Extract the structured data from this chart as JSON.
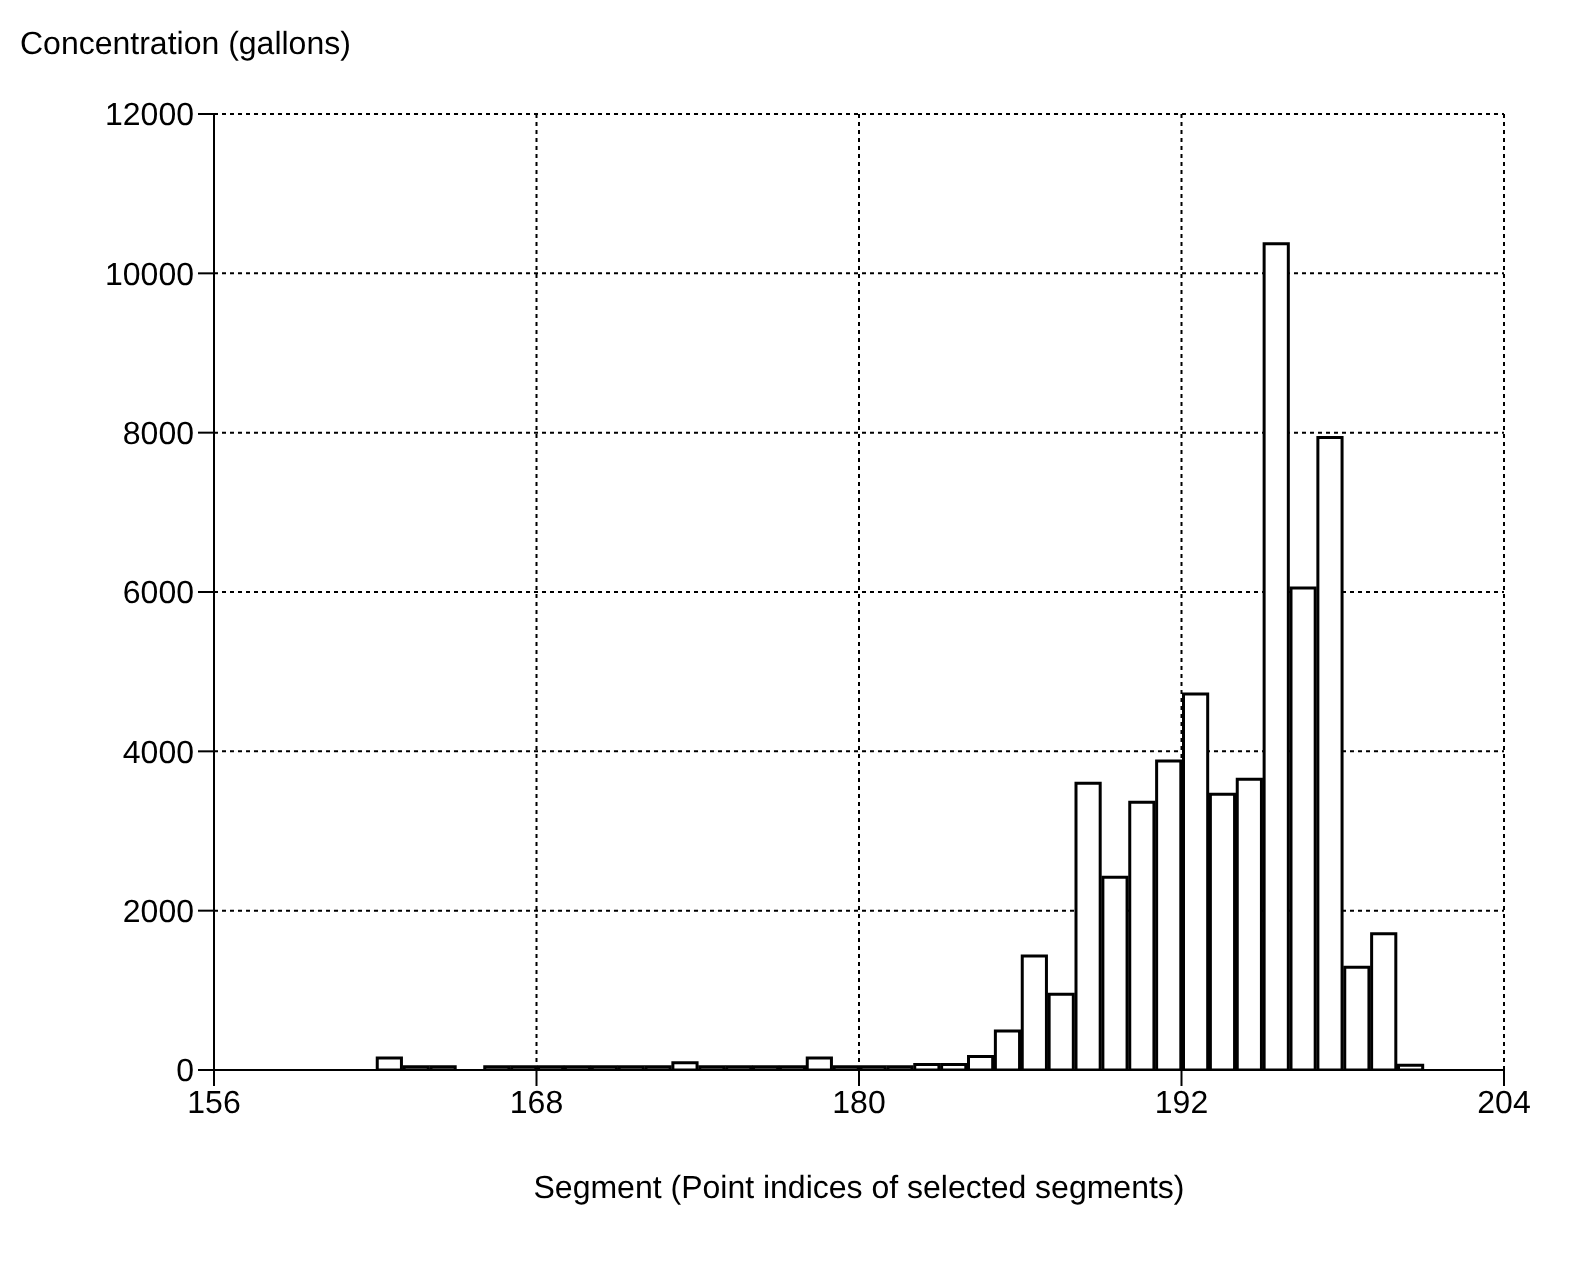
{
  "chart_data": {
    "type": "histogram",
    "ylabel": "Concentration (gallons)",
    "xlabel": "Segment (Point indices of selected segments)",
    "bins": [
      156,
      157,
      158,
      159,
      160,
      161,
      162,
      163,
      164,
      165,
      166,
      167,
      168,
      169,
      170,
      171,
      172,
      173,
      174,
      175,
      176,
      177,
      178,
      179,
      180,
      181,
      182,
      183,
      184,
      185,
      186,
      187,
      188,
      189,
      190,
      191,
      192,
      193,
      194,
      195,
      196,
      197,
      198,
      199,
      200,
      201,
      202,
      203,
      204
    ],
    "values": [
      0,
      0,
      0,
      0,
      0,
      0,
      150,
      40,
      40,
      0,
      40,
      40,
      40,
      40,
      40,
      40,
      40,
      90,
      40,
      40,
      40,
      40,
      150,
      40,
      40,
      40,
      70,
      70,
      170,
      490,
      1430,
      950,
      3600,
      2420,
      3360,
      3880,
      4720,
      3460,
      3650,
      10370,
      6050,
      7940,
      1290,
      1710,
      60,
      0,
      0,
      0
    ],
    "color": "#ffffff",
    "xlim": [
      156,
      204
    ],
    "xticks": [
      156,
      168,
      180,
      192,
      204
    ],
    "ylim": [
      0,
      12000
    ],
    "yticks": [
      0,
      2000,
      4000,
      6000,
      8000,
      10000,
      12000
    ],
    "grid": true
  }
}
